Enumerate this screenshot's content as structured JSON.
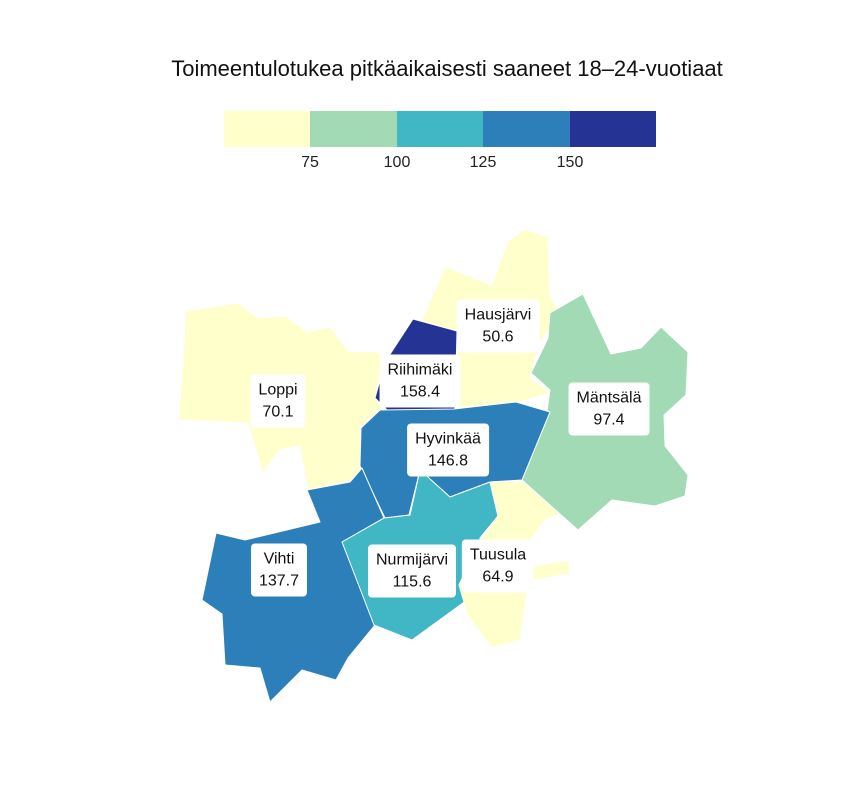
{
  "title": "Toimeentulotukea pitkäaikaisesti saaneet 18–24-vuotiaat",
  "legend": {
    "colors": [
      "#ffffcc",
      "#a1dab4",
      "#41b6c4",
      "#2c7fb8",
      "#253494"
    ],
    "breaks": [
      "75",
      "100",
      "125",
      "150"
    ]
  },
  "chart_data": {
    "type": "choropleth",
    "title": "Toimeentulotukea pitkäaikaisesti saaneet 18–24-vuotiaat",
    "legend_position": "top",
    "bins": [
      75,
      100,
      125,
      150
    ],
    "regions": [
      {
        "name": "Loppi",
        "value": "70.1",
        "color": "#ffffcc"
      },
      {
        "name": "Hausjärvi",
        "value": "50.6",
        "color": "#ffffcc"
      },
      {
        "name": "Riihimäki",
        "value": "158.4",
        "color": "#253494"
      },
      {
        "name": "Mäntsälä",
        "value": "97.4",
        "color": "#a1dab4"
      },
      {
        "name": "Hyvinkää",
        "value": "146.8",
        "color": "#2c7fb8"
      },
      {
        "name": "Vihti",
        "value": "137.7",
        "color": "#2c7fb8"
      },
      {
        "name": "Nurmijärvi",
        "value": "115.6",
        "color": "#41b6c4"
      },
      {
        "name": "Tuusula",
        "value": "64.9",
        "color": "#ffffcc"
      }
    ]
  }
}
